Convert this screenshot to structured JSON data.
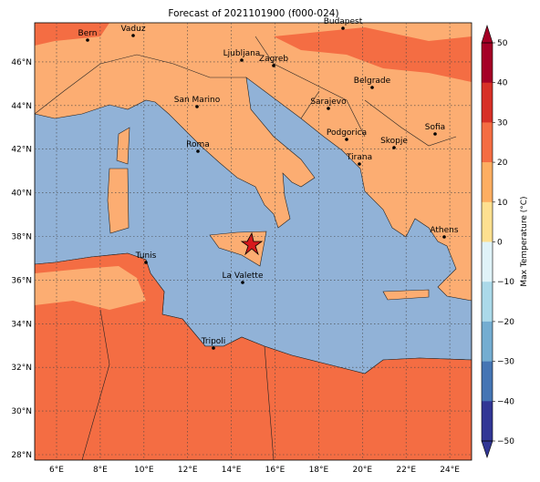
{
  "title": "Forecast of 2021101900 (f000-024)",
  "lon_ticks": [
    "6°E",
    "8°E",
    "10°E",
    "12°E",
    "14°E",
    "16°E",
    "18°E",
    "20°E",
    "22°E",
    "24°E"
  ],
  "lat_ticks": [
    "28°N",
    "30°N",
    "32°N",
    "34°N",
    "36°N",
    "38°N",
    "40°N",
    "42°N",
    "44°N",
    "46°N"
  ],
  "cities": [
    "Bern",
    "Vaduz",
    "Budapest",
    "Ljubljana",
    "Zagreb",
    "San Marino",
    "Sarajevo",
    "Belgrade",
    "Sofia",
    "Podgorica",
    "Skopje",
    "Roma",
    "Tirana",
    "Athens",
    "Tunis",
    "La Valette",
    "Tripoli"
  ],
  "colorbar": {
    "label": "Max Temperature (°C)",
    "ticks": [
      "50",
      "40",
      "30",
      "20",
      "10",
      "0",
      "−10",
      "−20",
      "−30",
      "−40",
      "−50"
    ],
    "colors": [
      "#a50026",
      "#d73027",
      "#f46d43",
      "#fdae61",
      "#fee090",
      "#e0f3f8",
      "#abd9e9",
      "#74add1",
      "#4575b4",
      "#313695"
    ]
  }
}
